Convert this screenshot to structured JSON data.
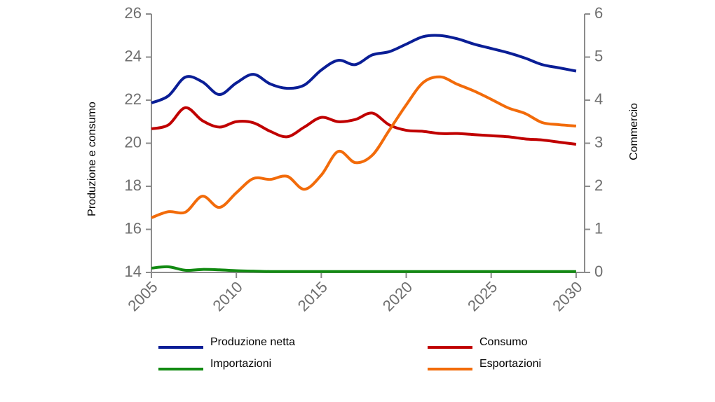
{
  "chart_data": {
    "type": "line",
    "x": [
      2005,
      2006,
      2007,
      2008,
      2009,
      2010,
      2011,
      2012,
      2013,
      2014,
      2015,
      2016,
      2017,
      2018,
      2019,
      2020,
      2021,
      2022,
      2023,
      2024,
      2025,
      2026,
      2027,
      2028,
      2029,
      2030
    ],
    "xlim": [
      2005,
      2030.5
    ],
    "xticks": [
      2005,
      2010,
      2015,
      2020,
      2025,
      2030
    ],
    "ylim": [
      14,
      26
    ],
    "yticks": [
      14,
      16,
      18,
      20,
      22,
      24,
      26
    ],
    "y2lim": [
      0,
      6
    ],
    "y2ticks": [
      0,
      1,
      2,
      3,
      4,
      5,
      6
    ],
    "ylabel": "Produzione e consumo",
    "y2label": "Commercio",
    "grid": false,
    "legend": "bottom",
    "series": [
      {
        "name": "Produzione netta",
        "color": "#0a1e96",
        "values": [
          21.87,
          22.2,
          23.07,
          22.85,
          22.26,
          22.8,
          23.2,
          22.75,
          22.55,
          22.7,
          23.4,
          23.85,
          23.65,
          24.1,
          24.25,
          24.6,
          24.95,
          25.0,
          24.85,
          24.6,
          24.4,
          24.2,
          23.95,
          23.65,
          23.5,
          23.35
        ]
      },
      {
        "name": "Consumo",
        "color": "#c00000",
        "values": [
          20.67,
          20.85,
          21.65,
          21.05,
          20.75,
          21.0,
          20.95,
          20.55,
          20.3,
          20.75,
          21.2,
          21.0,
          21.1,
          21.4,
          20.85,
          20.6,
          20.55,
          20.45,
          20.45,
          20.4,
          20.35,
          20.3,
          20.2,
          20.15,
          20.05,
          19.95
        ]
      },
      {
        "name": "Importazioni",
        "color": "#128a12",
        "axis": "y2",
        "values": [
          0.1,
          0.13,
          0.05,
          0.07,
          0.06,
          0.04,
          0.03,
          0.02,
          0.02,
          0.02,
          0.02,
          0.02,
          0.02,
          0.02,
          0.02,
          0.02,
          0.02,
          0.02,
          0.02,
          0.02,
          0.02,
          0.02,
          0.02,
          0.02,
          0.02,
          0.02
        ]
      },
      {
        "name": "Esportazioni",
        "color": "#f26b0a",
        "axis": "y2",
        "values": [
          1.27,
          1.41,
          1.4,
          1.77,
          1.51,
          1.85,
          2.18,
          2.16,
          2.23,
          1.93,
          2.26,
          2.81,
          2.55,
          2.72,
          3.3,
          3.89,
          4.41,
          4.54,
          4.37,
          4.21,
          4.02,
          3.82,
          3.69,
          3.48,
          3.43,
          3.4
        ]
      }
    ]
  }
}
